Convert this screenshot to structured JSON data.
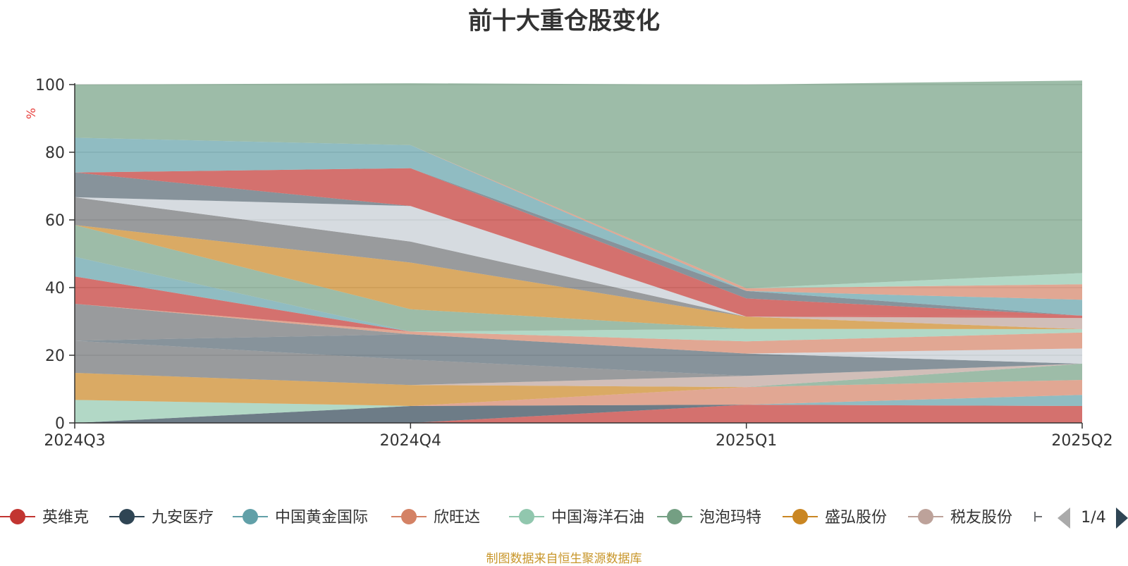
{
  "source_note": "制图数据来自恒生聚源数据库",
  "legend": {
    "page": "1/4"
  },
  "chart_data": {
    "type": "area",
    "stacked": true,
    "title": "前十大重仓股变化",
    "ylabel": "%",
    "ylim": [
      0,
      100
    ],
    "yticks": [
      0,
      20,
      40,
      60,
      80,
      100
    ],
    "categories": [
      "2024Q3",
      "2024Q4",
      "2025Q1",
      "2025Q2"
    ],
    "grid": true,
    "legend_position": "bottom",
    "legend_visible": [
      "英维克",
      "九安医疗",
      "中国黄金国际",
      "欣旺达",
      "中国海洋石油",
      "泡泡玛特",
      "盛弘股份",
      "税友股份"
    ],
    "series": [
      {
        "name": "英维克",
        "color": "#c23531",
        "values": [
          0,
          0,
          5.4,
          5.0
        ]
      },
      {
        "color": "#2f4554",
        "values": [
          0,
          5.0,
          0,
          0
        ]
      },
      {
        "color": "#61a0a8",
        "values": [
          0,
          0,
          0,
          3.3
        ]
      },
      {
        "color": "#d48265",
        "values": [
          0,
          0,
          5.2,
          4.4
        ]
      },
      {
        "color": "#91c7ae",
        "values": [
          6.8,
          0,
          0,
          0
        ]
      },
      {
        "color": "#749f83",
        "values": [
          0,
          0,
          0,
          4.8
        ]
      },
      {
        "color": "#ca8622",
        "values": [
          8.0,
          6.2,
          0,
          0
        ]
      },
      {
        "color": "#bda29a",
        "values": [
          0,
          0,
          3.3,
          0
        ]
      },
      {
        "color": "#6e7074",
        "values": [
          9.5,
          7.5,
          0,
          0
        ]
      },
      {
        "color": "#546570",
        "values": [
          0,
          7.5,
          6.6,
          0
        ]
      },
      {
        "color": "#c4ccd3",
        "values": [
          0,
          0,
          0,
          4.5
        ]
      },
      {
        "color": "#6e7074",
        "values": [
          10.9,
          0,
          0,
          0
        ]
      },
      {
        "color": "#d48265",
        "values": [
          0,
          0.8,
          3.6,
          4.7
        ]
      },
      {
        "color": "#c23531",
        "values": [
          8.1,
          0,
          0,
          0
        ]
      },
      {
        "color": "#91c7ae",
        "values": [
          0,
          0,
          3.7,
          1.0
        ]
      },
      {
        "color": "#61a0a8",
        "values": [
          5.8,
          0,
          0,
          0
        ]
      },
      {
        "color": "#749f83",
        "values": [
          9.4,
          6.6,
          0,
          0
        ]
      },
      {
        "color": "#ca8622",
        "values": [
          0,
          13.8,
          3.6,
          0
        ]
      },
      {
        "color": "#bda29a",
        "values": [
          0,
          0,
          0,
          3.3
        ]
      },
      {
        "color": "#6e7074",
        "values": [
          8.2,
          6.2,
          0,
          0
        ]
      },
      {
        "color": "#c23531",
        "values": [
          0,
          0,
          0,
          0.7
        ]
      },
      {
        "color": "#c4ccd3",
        "values": [
          0,
          10.5,
          0,
          0
        ]
      },
      {
        "color": "#546570",
        "values": [
          7.3,
          0,
          0,
          0
        ]
      },
      {
        "color": "#c23531",
        "values": [
          0,
          11.2,
          5.4,
          0
        ]
      },
      {
        "color": "#546570",
        "values": [
          0,
          0,
          2.2,
          0
        ]
      },
      {
        "color": "#61a0a8",
        "values": [
          10.3,
          6.8,
          0,
          4.7
        ]
      },
      {
        "color": "#d48265",
        "values": [
          0,
          0,
          0.8,
          4.6
        ]
      },
      {
        "color": "#91c7ae",
        "values": [
          0,
          0,
          0,
          3.3
        ]
      },
      {
        "color": "#749f83",
        "values": [
          15.7,
          18.3,
          60.2,
          56.9
        ]
      }
    ]
  }
}
